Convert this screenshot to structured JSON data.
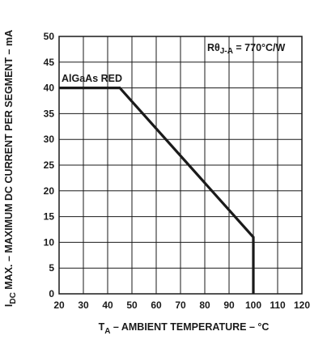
{
  "chart_data": {
    "type": "line",
    "x": [
      20,
      45,
      100,
      100
    ],
    "series": [
      {
        "name": "AlGaAs RED",
        "values": [
          40,
          40,
          11,
          0
        ]
      }
    ],
    "xlim": [
      20,
      120
    ],
    "ylim": [
      0,
      50
    ],
    "xticks": [
      "20",
      "30",
      "40",
      "50",
      "60",
      "70",
      "80",
      "90",
      "100",
      "110",
      "120"
    ],
    "yticks": [
      "0",
      "5",
      "10",
      "15",
      "20",
      "25",
      "30",
      "35",
      "40",
      "45",
      "50"
    ],
    "grid": true,
    "xlabel": {
      "main": "T",
      "sub": "A",
      "rest": " – AMBIENT TEMPERATURE – °C"
    },
    "ylabel": {
      "main": "I",
      "sub": "DC",
      "rest": " MAX. – MAXIMUM DC CURRENT PER SEGMENT – mA"
    },
    "annotations": {
      "series_label": "AlGaAs RED",
      "thermal_resistance": {
        "main": "Rθ",
        "sub": "J-A",
        "rest": " = 770°C/W"
      }
    }
  }
}
